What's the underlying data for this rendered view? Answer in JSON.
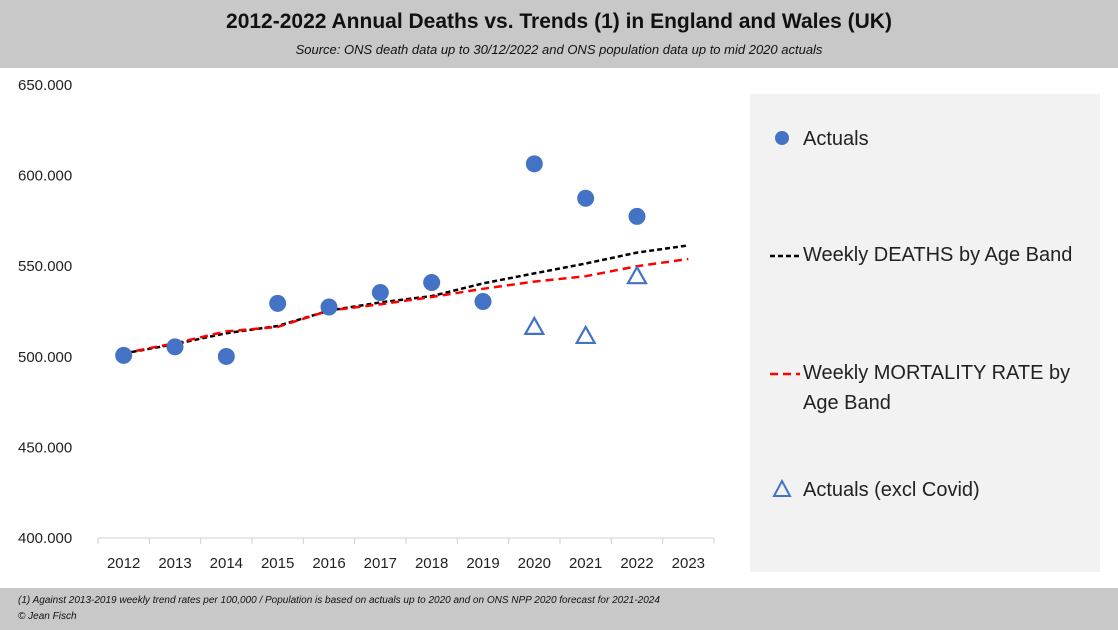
{
  "header": {
    "title": "2012-2022 Annual Deaths vs. Trends (1) in England and Wales (UK)",
    "subtitle": "Source: ONS death data up to 30/12/2022 and ONS population data up to mid 2020 actuals"
  },
  "footer": {
    "note": "(1) Against 2013-2019 weekly trend rates per 100,000 / Population is based on actuals up to 2020 and on ONS NPP 2020 forecast for 2021-2024",
    "credit": "© Jean Fisch"
  },
  "legend": {
    "items": [
      {
        "label": "Actuals"
      },
      {
        "label": "Weekly DEATHS by Age Band"
      },
      {
        "label": "Weekly MORTALITY RATE by Age Band"
      },
      {
        "label": "Actuals (excl Covid)"
      }
    ]
  },
  "colors": {
    "actuals": "#4472c4",
    "deaths_trend": "#000000",
    "mortality_trend": "#ff0000",
    "excl_covid": "#4472c4"
  },
  "chart_data": {
    "type": "line",
    "title": "2012-2022 Annual Deaths vs. Trends (1) in England and Wales (UK)",
    "categories": [
      "2012",
      "2013",
      "2014",
      "2015",
      "2016",
      "2017",
      "2018",
      "2019",
      "2020",
      "2021",
      "2022",
      "2023"
    ],
    "ylim": [
      400000,
      650000
    ],
    "yticks": [
      400000,
      450000,
      500000,
      550000,
      600000,
      650000
    ],
    "ytick_labels": [
      "400.000",
      "450.000",
      "500.000",
      "550.000",
      "600.000",
      "650.000"
    ],
    "series": [
      {
        "name": "Actuals",
        "style": "marker-circle",
        "values": [
          500800,
          505500,
          500200,
          529500,
          527500,
          535500,
          541000,
          530500,
          606500,
          587500,
          577500,
          null
        ]
      },
      {
        "name": "Weekly DEATHS by Age Band",
        "style": "dashed-line",
        "values": [
          501800,
          507000,
          513000,
          517000,
          525500,
          530000,
          533500,
          540500,
          546000,
          551500,
          557500,
          561500
        ]
      },
      {
        "name": "Weekly MORTALITY RATE by Age Band",
        "style": "dashed-line",
        "values": [
          502000,
          507500,
          514000,
          516500,
          525500,
          529000,
          533000,
          537500,
          541500,
          544500,
          550000,
          554000
        ]
      },
      {
        "name": "Actuals (excl Covid)",
        "style": "marker-triangle",
        "values": [
          null,
          null,
          null,
          null,
          null,
          null,
          null,
          null,
          516500,
          511500,
          544500,
          null
        ]
      }
    ],
    "legend_position": "right"
  }
}
